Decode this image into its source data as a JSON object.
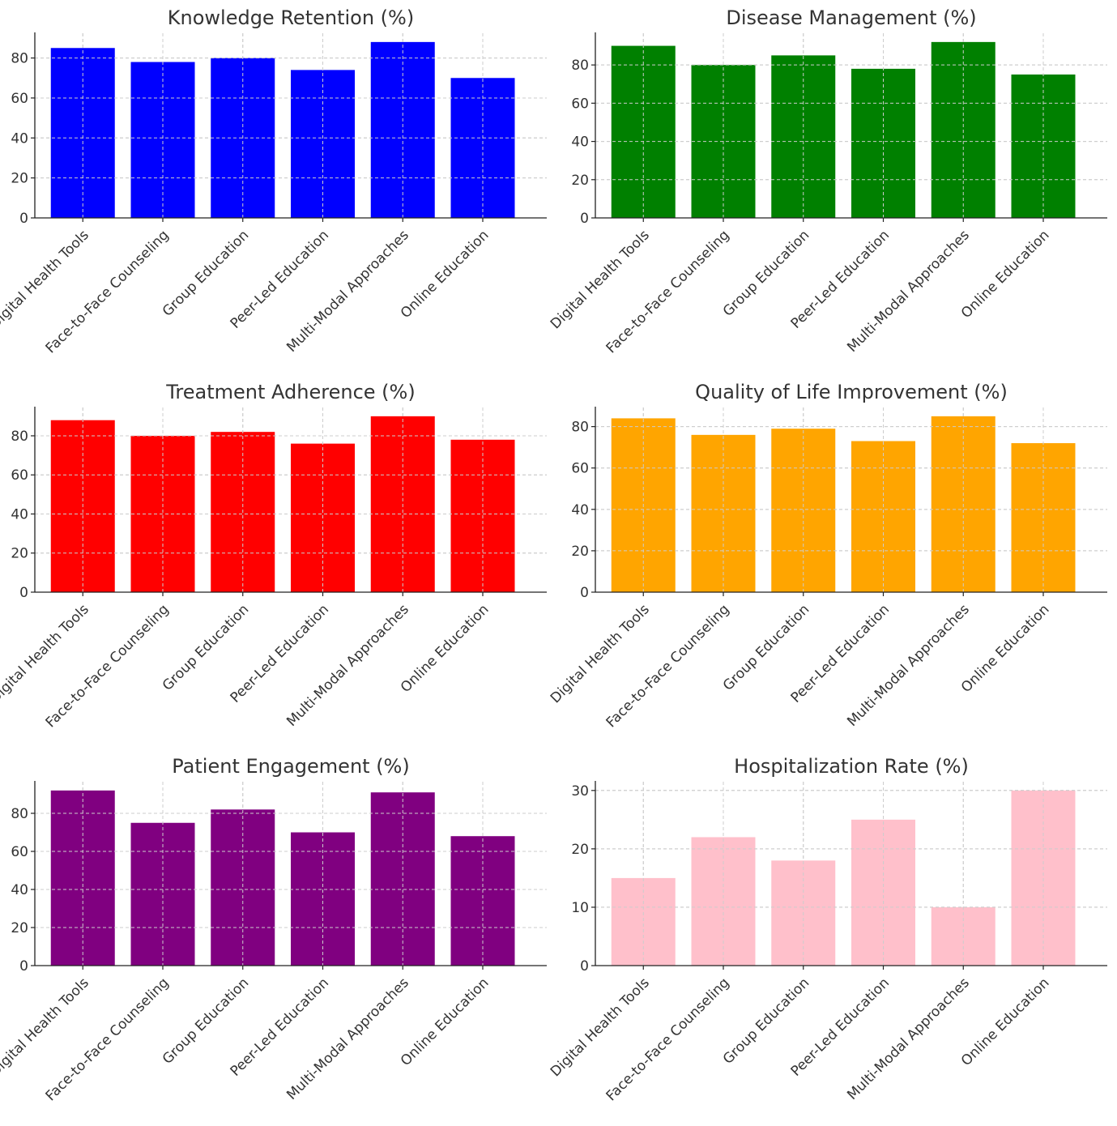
{
  "chart_data": [
    {
      "type": "bar",
      "title": "Knowledge Retention (%)",
      "categories": [
        "Digital Health Tools",
        "Face-to-Face Counseling",
        "Group Education",
        "Peer-Led Education",
        "Multi-Modal Approaches",
        "Online Education"
      ],
      "values": [
        85,
        78,
        80,
        74,
        88,
        70
      ],
      "color": "#0000ff",
      "ylim": [
        0,
        92.4
      ],
      "yticks": [
        0,
        20,
        40,
        60,
        80
      ],
      "grid": true
    },
    {
      "type": "bar",
      "title": "Disease Management (%)",
      "categories": [
        "Digital Health Tools",
        "Face-to-Face Counseling",
        "Group Education",
        "Peer-Led Education",
        "Multi-Modal Approaches",
        "Online Education"
      ],
      "values": [
        90,
        80,
        85,
        78,
        92,
        75
      ],
      "color": "#008000",
      "ylim": [
        0,
        96.6
      ],
      "yticks": [
        0,
        20,
        40,
        60,
        80
      ],
      "grid": true
    },
    {
      "type": "bar",
      "title": "Treatment Adherence (%)",
      "categories": [
        "Digital Health Tools",
        "Face-to-Face Counseling",
        "Group Education",
        "Peer-Led Education",
        "Multi-Modal Approaches",
        "Online Education"
      ],
      "values": [
        88,
        80,
        82,
        76,
        90,
        78
      ],
      "color": "#ff0000",
      "ylim": [
        0,
        94.5
      ],
      "yticks": [
        0,
        20,
        40,
        60,
        80
      ],
      "grid": true
    },
    {
      "type": "bar",
      "title": "Quality of Life Improvement (%)",
      "categories": [
        "Digital Health Tools",
        "Face-to-Face Counseling",
        "Group Education",
        "Peer-Led Education",
        "Multi-Modal Approaches",
        "Online Education"
      ],
      "values": [
        84,
        76,
        79,
        73,
        85,
        72
      ],
      "color": "#ffa500",
      "ylim": [
        0,
        89.25
      ],
      "yticks": [
        0,
        20,
        40,
        60,
        80
      ],
      "grid": true
    },
    {
      "type": "bar",
      "title": "Patient Engagement (%)",
      "categories": [
        "Digital Health Tools",
        "Face-to-Face Counseling",
        "Group Education",
        "Peer-Led Education",
        "Multi-Modal Approaches",
        "Online Education"
      ],
      "values": [
        92,
        75,
        82,
        70,
        91,
        68
      ],
      "color": "#800080",
      "ylim": [
        0,
        96.6
      ],
      "yticks": [
        0,
        20,
        40,
        60,
        80
      ],
      "grid": true
    },
    {
      "type": "bar",
      "title": "Hospitalization Rate (%)",
      "categories": [
        "Digital Health Tools",
        "Face-to-Face Counseling",
        "Group Education",
        "Peer-Led Education",
        "Multi-Modal Approaches",
        "Online Education"
      ],
      "values": [
        15,
        22,
        18,
        25,
        10,
        30
      ],
      "color": "#ffc0cb",
      "ylim": [
        0,
        31.5
      ],
      "yticks": [
        0,
        10,
        20,
        30
      ],
      "grid": true
    }
  ]
}
